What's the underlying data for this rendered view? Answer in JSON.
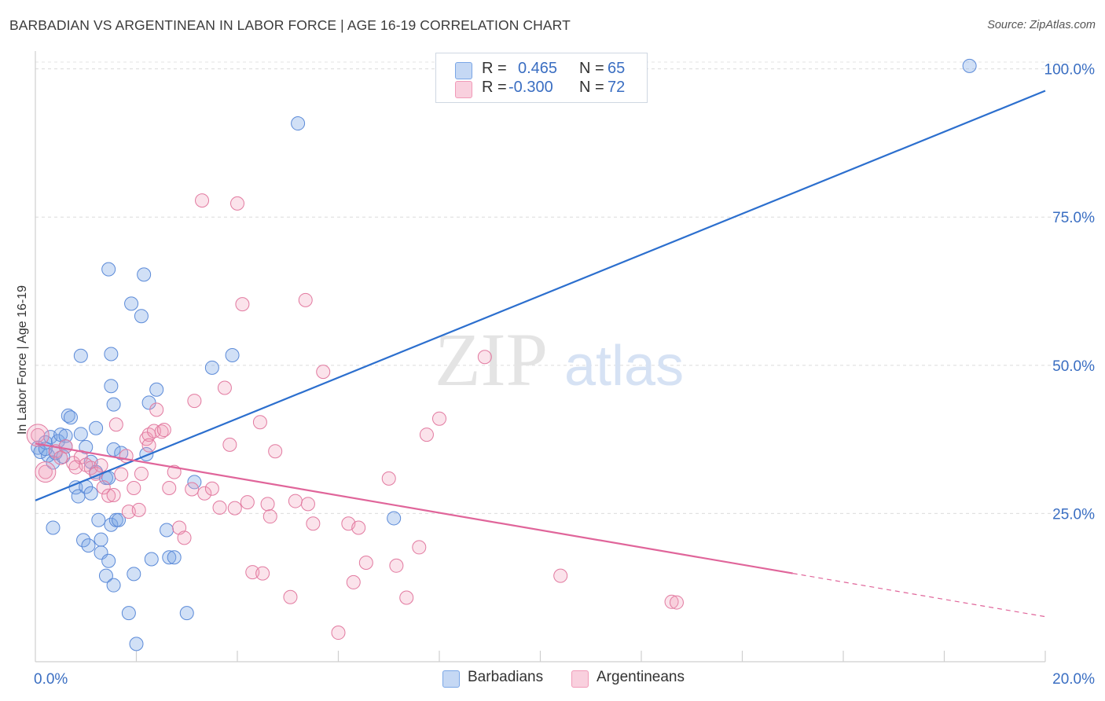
{
  "title": "BARBADIAN VS ARGENTINEAN IN LABOR FORCE | AGE 16-19 CORRELATION CHART",
  "source": "Source: ZipAtlas.com",
  "watermark": {
    "zip": "ZIP",
    "atlas": "atlas"
  },
  "legend_top": [
    {
      "r_label": "R =",
      "r_value": "0.465",
      "n_label": "N =",
      "n_value": "65",
      "color": "#7aa6e6"
    },
    {
      "r_label": "R =",
      "r_value": "-0.300",
      "n_label": "N =",
      "n_value": "72",
      "color": "#f19ab8"
    }
  ],
  "legend_bottom": [
    {
      "label": "Barbadians",
      "color": "#7aa6e6"
    },
    {
      "label": "Argentineans",
      "color": "#f19ab8"
    }
  ],
  "chart_data": {
    "type": "scatter",
    "title": "BARBADIAN VS ARGENTINEAN IN LABOR FORCE | AGE 16-19 CORRELATION CHART",
    "xlabel": "",
    "ylabel": "In Labor Force | Age 16-19",
    "xlim": [
      0,
      20
    ],
    "ylim": [
      0,
      103
    ],
    "x_tick_labels": [
      {
        "value": 0,
        "label": "0.0%"
      },
      {
        "value": 20,
        "label": "20.0%"
      }
    ],
    "y_tick_labels": [
      {
        "value": 25,
        "label": "25.0%"
      },
      {
        "value": 50,
        "label": "50.0%"
      },
      {
        "value": 75,
        "label": "75.0%"
      },
      {
        "value": 100,
        "label": "100.0%"
      }
    ],
    "x_minor_ticks": [
      2,
      4,
      6,
      8,
      10,
      12,
      14,
      16,
      18,
      20
    ],
    "grid_y": [
      25,
      50,
      75,
      100
    ],
    "series": [
      {
        "name": "Barbadians",
        "color": "#7aa6e6",
        "edge": "#5b8ad8",
        "trend": {
          "x": [
            0,
            20
          ],
          "y": [
            27.2,
            96.3
          ],
          "color": "#2c6fce",
          "dashed_from": null
        },
        "points": [
          [
            0.05,
            36.1
          ],
          [
            0.1,
            35.4
          ],
          [
            0.2,
            37.0
          ],
          [
            0.25,
            34.8
          ],
          [
            0.3,
            37.9
          ],
          [
            0.35,
            33.6
          ],
          [
            0.4,
            35.2
          ],
          [
            0.45,
            37.2
          ],
          [
            0.5,
            38.3
          ],
          [
            0.55,
            34.6
          ],
          [
            0.6,
            38.1
          ],
          [
            0.65,
            41.5
          ],
          [
            0.7,
            41.2
          ],
          [
            0.8,
            29.4
          ],
          [
            0.85,
            27.9
          ],
          [
            0.9,
            51.6
          ],
          [
            0.95,
            20.5
          ],
          [
            1.0,
            29.5
          ],
          [
            1.05,
            19.6
          ],
          [
            1.1,
            33.7
          ],
          [
            1.1,
            28.4
          ],
          [
            1.2,
            39.4
          ],
          [
            1.25,
            23.9
          ],
          [
            1.3,
            20.6
          ],
          [
            1.3,
            18.4
          ],
          [
            1.4,
            14.5
          ],
          [
            1.4,
            31.0
          ],
          [
            1.45,
            17.0
          ],
          [
            1.5,
            23.1
          ],
          [
            1.55,
            12.9
          ],
          [
            1.5,
            46.5
          ],
          [
            1.45,
            31.0
          ],
          [
            1.45,
            66.2
          ],
          [
            1.5,
            51.9
          ],
          [
            1.55,
            35.8
          ],
          [
            1.55,
            43.4
          ],
          [
            1.6,
            23.9
          ],
          [
            1.65,
            23.9
          ],
          [
            1.7,
            35.2
          ],
          [
            1.85,
            8.2
          ],
          [
            1.9,
            60.4
          ],
          [
            1.95,
            14.8
          ],
          [
            2.0,
            3.0
          ],
          [
            2.1,
            58.3
          ],
          [
            2.15,
            65.3
          ],
          [
            2.2,
            35.0
          ],
          [
            2.25,
            43.7
          ],
          [
            2.3,
            17.3
          ],
          [
            2.4,
            45.9
          ],
          [
            2.6,
            22.2
          ],
          [
            2.65,
            17.6
          ],
          [
            2.75,
            17.6
          ],
          [
            3.0,
            8.2
          ],
          [
            3.15,
            30.3
          ],
          [
            3.5,
            49.6
          ],
          [
            3.9,
            51.7
          ],
          [
            5.2,
            90.8
          ],
          [
            7.1,
            24.2
          ],
          [
            18.5,
            100.5
          ],
          [
            0.35,
            22.6
          ],
          [
            0.6,
            36.3
          ],
          [
            0.9,
            38.4
          ],
          [
            1.0,
            36.2
          ],
          [
            1.2,
            32.0
          ],
          [
            0.2,
            35.9
          ]
        ]
      },
      {
        "name": "Argentineans",
        "color": "#f19ab8",
        "edge": "#e27aa0",
        "trend": {
          "x": [
            0,
            20
          ],
          "y": [
            36.8,
            7.6
          ],
          "color": "#e0659a",
          "dashed_from": 15.0
        },
        "points": [
          [
            0.05,
            38.2
          ],
          [
            0.2,
            32.0
          ],
          [
            0.4,
            35.5
          ],
          [
            0.6,
            36.3
          ],
          [
            0.75,
            33.5
          ],
          [
            0.9,
            34.5
          ],
          [
            1.0,
            33.2
          ],
          [
            1.1,
            32.7
          ],
          [
            1.2,
            31.7
          ],
          [
            1.3,
            33.1
          ],
          [
            1.35,
            29.4
          ],
          [
            1.45,
            28.0
          ],
          [
            1.55,
            28.1
          ],
          [
            1.6,
            40.0
          ],
          [
            1.7,
            31.6
          ],
          [
            1.8,
            34.7
          ],
          [
            1.85,
            25.3
          ],
          [
            1.95,
            29.3
          ],
          [
            2.05,
            25.6
          ],
          [
            2.1,
            31.7
          ],
          [
            2.2,
            37.6
          ],
          [
            2.25,
            38.3
          ],
          [
            2.25,
            36.5
          ],
          [
            2.35,
            38.9
          ],
          [
            2.4,
            42.5
          ],
          [
            2.5,
            38.8
          ],
          [
            2.55,
            39.1
          ],
          [
            2.65,
            29.3
          ],
          [
            2.75,
            32.0
          ],
          [
            2.85,
            22.6
          ],
          [
            2.95,
            20.9
          ],
          [
            3.1,
            29.1
          ],
          [
            3.15,
            44.0
          ],
          [
            3.3,
            77.8
          ],
          [
            3.35,
            28.4
          ],
          [
            3.5,
            29.2
          ],
          [
            3.65,
            26.0
          ],
          [
            3.75,
            46.2
          ],
          [
            3.85,
            36.6
          ],
          [
            3.95,
            25.9
          ],
          [
            4.0,
            77.3
          ],
          [
            4.1,
            60.3
          ],
          [
            4.2,
            26.9
          ],
          [
            4.3,
            15.1
          ],
          [
            4.45,
            40.4
          ],
          [
            4.5,
            14.9
          ],
          [
            4.6,
            26.6
          ],
          [
            4.65,
            24.5
          ],
          [
            4.75,
            35.5
          ],
          [
            5.05,
            10.9
          ],
          [
            5.15,
            27.1
          ],
          [
            5.35,
            61.0
          ],
          [
            5.4,
            26.6
          ],
          [
            5.5,
            23.3
          ],
          [
            5.7,
            48.9
          ],
          [
            6.0,
            4.9
          ],
          [
            6.2,
            23.3
          ],
          [
            6.3,
            13.4
          ],
          [
            6.4,
            22.6
          ],
          [
            6.55,
            16.7
          ],
          [
            7.0,
            30.9
          ],
          [
            7.15,
            16.2
          ],
          [
            7.35,
            10.8
          ],
          [
            7.6,
            19.3
          ],
          [
            7.75,
            38.3
          ],
          [
            8.0,
            41.0
          ],
          [
            8.9,
            51.4
          ],
          [
            10.4,
            14.5
          ],
          [
            12.6,
            10.1
          ],
          [
            12.7,
            10.0
          ],
          [
            0.5,
            34.4
          ],
          [
            0.8,
            32.8
          ]
        ]
      }
    ]
  }
}
